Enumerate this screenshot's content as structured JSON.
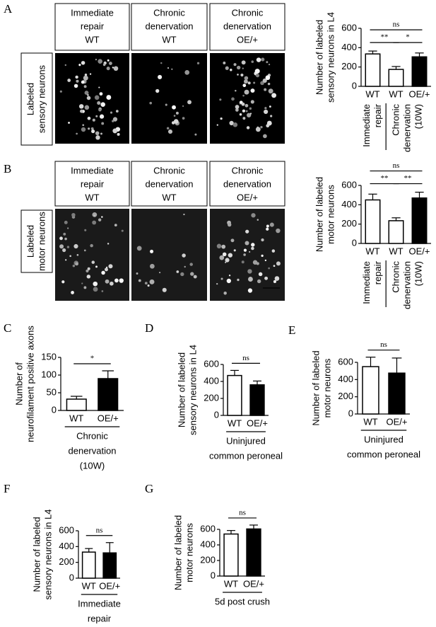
{
  "image_rows": [
    {
      "panel": "A",
      "row_label": [
        "Labeled",
        "sensory neurons"
      ],
      "columns": [
        [
          "Immediate",
          "repair",
          "WT"
        ],
        [
          "Chronic",
          "denervation",
          "WT"
        ],
        [
          "Chronic",
          "denervation",
          "OE/+"
        ]
      ]
    },
    {
      "panel": "B",
      "row_label": [
        "Labeled",
        "motor neurons"
      ],
      "columns": [
        [
          "Immediate",
          "repair",
          "WT"
        ],
        [
          "Chronic",
          "denervation",
          "WT"
        ],
        [
          "Chronic",
          "denervation",
          "OE/+"
        ]
      ]
    }
  ],
  "chart_data": [
    {
      "type": "bar",
      "y_label": [
        "Number of labeled",
        "sensory neurons  in L4"
      ],
      "categories": [
        "WT",
        "WT",
        "OE/+"
      ],
      "values": [
        335,
        175,
        305
      ],
      "errors": [
        30,
        30,
        40
      ],
      "colors": [
        "#ffffff",
        "#ffffff",
        "#000000"
      ],
      "ylim": [
        0,
        600
      ],
      "yticks": [
        0,
        200,
        400,
        600
      ],
      "significance": [
        "ns",
        "**",
        "*"
      ],
      "groups": [
        [
          "Immediate",
          "repair"
        ],
        [
          "Chronic",
          "denervation",
          "(10W)"
        ]
      ]
    },
    {
      "type": "bar",
      "y_label": [
        "Number of labeled",
        "motor neurons"
      ],
      "categories": [
        "WT",
        "WT",
        "OE/+"
      ],
      "values": [
        450,
        235,
        470
      ],
      "errors": [
        60,
        30,
        60
      ],
      "colors": [
        "#ffffff",
        "#ffffff",
        "#000000"
      ],
      "ylim": [
        0,
        600
      ],
      "yticks": [
        0,
        200,
        400,
        600
      ],
      "significance": [
        "ns",
        "**",
        "**"
      ],
      "groups": [
        [
          "Immediate",
          "repair"
        ],
        [
          "Chronic",
          "denervation",
          "(10W)"
        ]
      ]
    },
    {
      "type": "bar",
      "panel": "C",
      "y_label": [
        "Number of",
        "neurofilament positive axons"
      ],
      "categories": [
        "WT",
        "OE/+"
      ],
      "values": [
        32,
        90
      ],
      "errors": [
        8,
        22
      ],
      "colors": [
        "#ffffff",
        "#000000"
      ],
      "ylim": [
        0,
        150
      ],
      "yticks": [
        0,
        50,
        100,
        150
      ],
      "significance": [
        "*"
      ],
      "groups": [
        [
          "Chronic",
          "denervation",
          "(10W)"
        ]
      ]
    },
    {
      "type": "bar",
      "panel": "D",
      "y_label": [
        "Number of labeled",
        "sensory neurons  in L4"
      ],
      "categories": [
        "WT",
        "OE/+"
      ],
      "values": [
        470,
        360
      ],
      "errors": [
        60,
        45
      ],
      "colors": [
        "#ffffff",
        "#000000"
      ],
      "ylim": [
        0,
        600
      ],
      "yticks": [
        0,
        200,
        400,
        600
      ],
      "significance": [
        "ns"
      ],
      "groups": [
        [
          "Uninjured",
          "common peroneal"
        ]
      ]
    },
    {
      "type": "bar",
      "panel": "E",
      "y_label": [
        "Number of labeled",
        "motor neurons"
      ],
      "categories": [
        "WT",
        "OE/+"
      ],
      "values": [
        550,
        475
      ],
      "errors": [
        110,
        175
      ],
      "colors": [
        "#ffffff",
        "#000000"
      ],
      "ylim": [
        0,
        600
      ],
      "yticks": [
        0,
        200,
        400,
        600
      ],
      "significance": [
        "ns"
      ],
      "groups": [
        [
          "Uninjured",
          "common peroneal"
        ]
      ]
    },
    {
      "type": "bar",
      "panel": "F",
      "y_label": [
        "Number of labeled",
        "sensory neurons  in L4"
      ],
      "categories": [
        "WT",
        "OE/+"
      ],
      "values": [
        330,
        320
      ],
      "errors": [
        45,
        130
      ],
      "colors": [
        "#ffffff",
        "#000000"
      ],
      "ylim": [
        0,
        600
      ],
      "yticks": [
        0,
        200,
        400,
        600
      ],
      "significance": [
        "ns"
      ],
      "groups": [
        [
          "Immediate",
          "repair"
        ]
      ]
    },
    {
      "type": "bar",
      "panel": "G",
      "y_label": [
        "Number of labeled",
        "motor neurons"
      ],
      "categories": [
        "WT",
        "OE/+"
      ],
      "values": [
        540,
        605
      ],
      "errors": [
        45,
        50
      ],
      "colors": [
        "#ffffff",
        "#000000"
      ],
      "ylim": [
        0,
        600
      ],
      "yticks": [
        0,
        200,
        400,
        600
      ],
      "significance": [
        "ns"
      ],
      "groups": [
        [
          "5d post crush"
        ]
      ]
    }
  ]
}
